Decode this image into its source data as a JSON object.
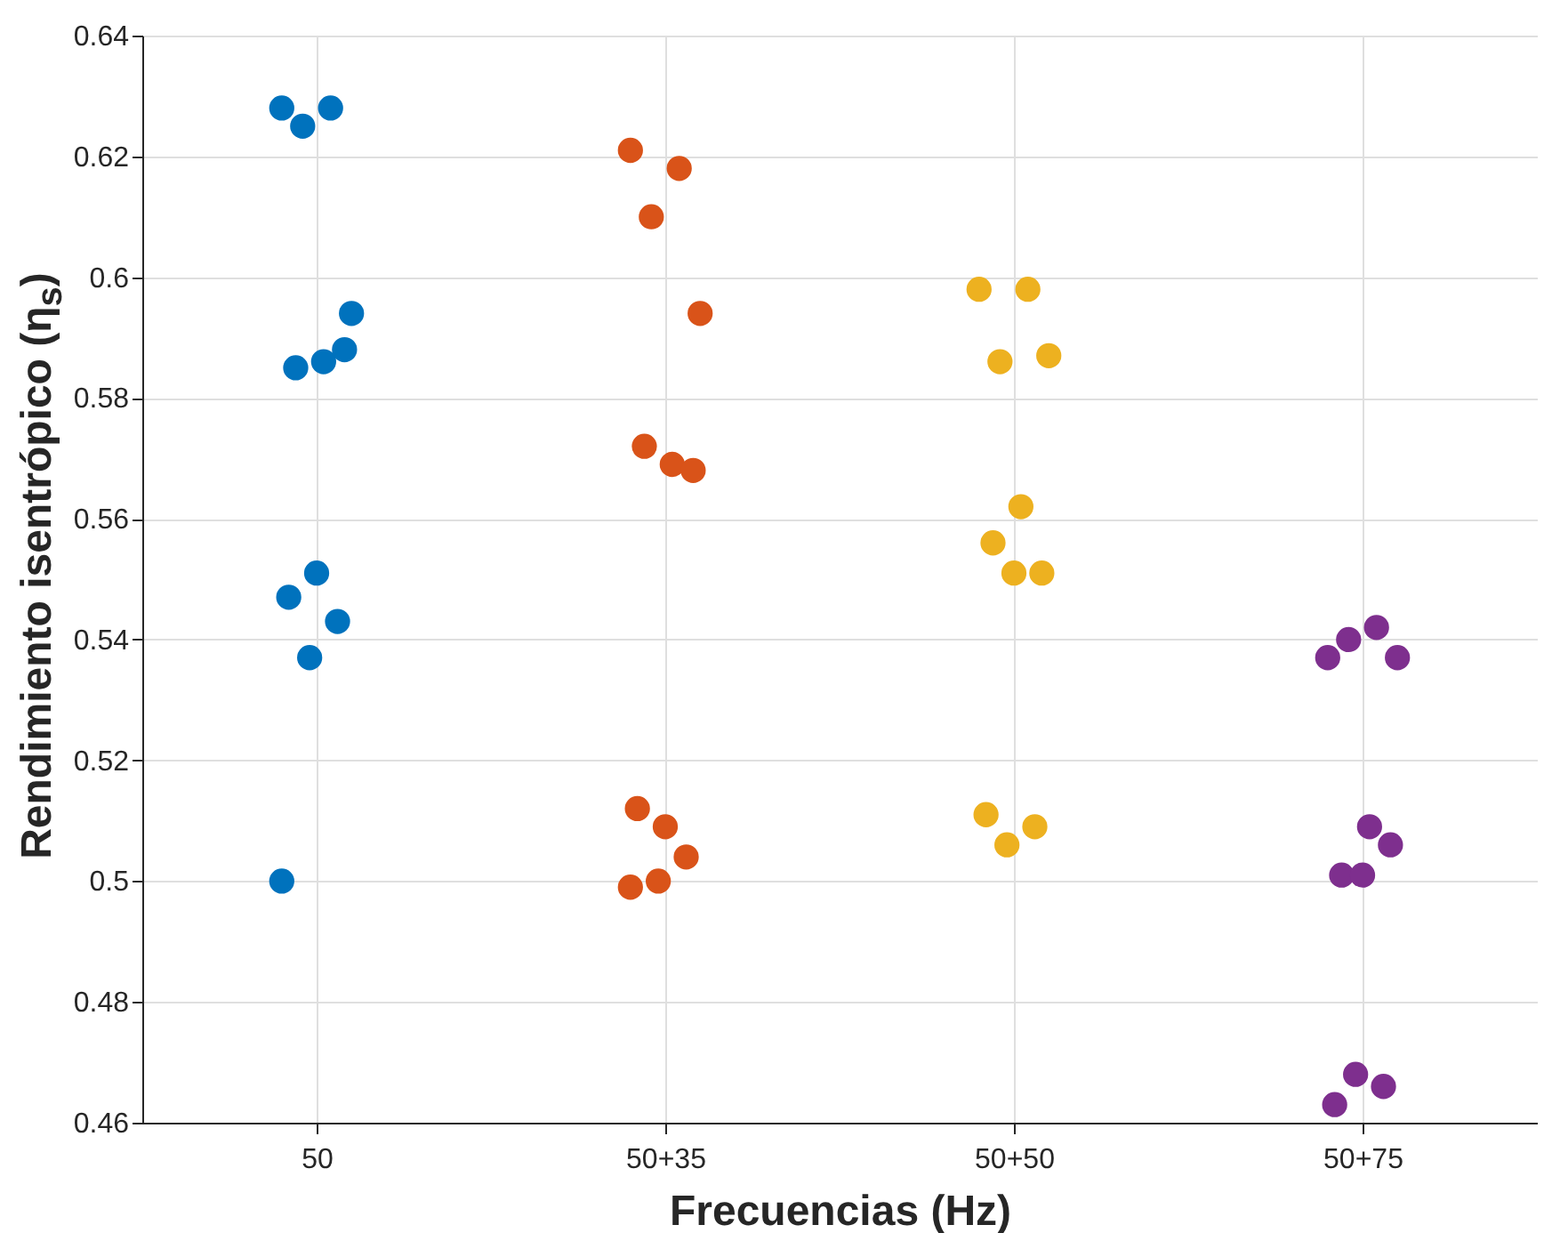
{
  "chart_data": {
    "type": "scatter",
    "xlabel": "Frecuencias (Hz)",
    "ylabel": "Rendimiento isentrópico (η$_{s}$)",
    "categories": [
      "50",
      "50+35",
      "50+50",
      "50+75"
    ],
    "ylim": [
      0.46,
      0.64
    ],
    "yticks": [
      0.46,
      0.48,
      0.5,
      0.52,
      0.54,
      0.56,
      0.58,
      0.6,
      0.62,
      0.64
    ],
    "grid": true,
    "marker": "circle",
    "series": [
      {
        "color": "#0072bd",
        "x": [
          "50",
          "50",
          "50",
          "50",
          "50",
          "50",
          "50",
          "50",
          "50",
          "50",
          "50",
          "50"
        ],
        "values": [
          0.628,
          0.628,
          0.625,
          0.594,
          0.586,
          0.585,
          0.588,
          0.551,
          0.547,
          0.543,
          0.537,
          0.5
        ]
      },
      {
        "color": "#d95319",
        "x": [
          "50+35",
          "50+35",
          "50+35",
          "50+35",
          "50+35",
          "50+35",
          "50+35",
          "50+35",
          "50+35",
          "50+35",
          "50+35",
          "50+35"
        ],
        "values": [
          0.621,
          0.618,
          0.61,
          0.594,
          0.569,
          0.572,
          0.568,
          0.509,
          0.512,
          0.504,
          0.5,
          0.499
        ]
      },
      {
        "color": "#edb120",
        "x": [
          "50+50",
          "50+50",
          "50+50",
          "50+50",
          "50+50",
          "50+50",
          "50+50",
          "50+50",
          "50+50",
          "50+50",
          "50+50"
        ],
        "values": [
          0.598,
          0.598,
          0.586,
          0.587,
          0.562,
          0.556,
          0.551,
          0.551,
          0.511,
          0.509,
          0.506
        ]
      },
      {
        "color": "#7e2f8e",
        "x": [
          "50+75",
          "50+75",
          "50+75",
          "50+75",
          "50+75",
          "50+75",
          "50+75",
          "50+75",
          "50+75",
          "50+75",
          "50+75"
        ],
        "values": [
          0.537,
          0.542,
          0.54,
          0.537,
          0.509,
          0.501,
          0.506,
          0.501,
          0.463,
          0.466,
          0.468
        ]
      }
    ]
  }
}
